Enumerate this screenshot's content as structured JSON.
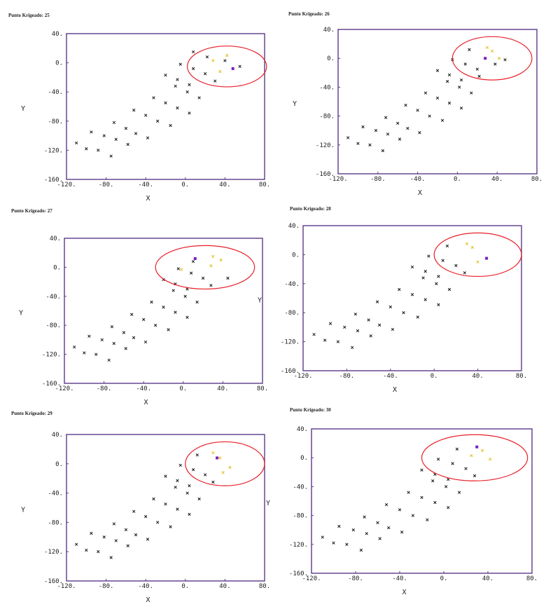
{
  "colors": {
    "frame": "#5a3a8a",
    "point": "#1a1a1a",
    "highlight": "#e0c020",
    "target": "#7a1fbf",
    "ellipse": "#e8202a"
  },
  "chart_data": [
    {
      "type": "scatter",
      "title": "Punto Krigeado: 25",
      "xlabel": "X",
      "ylabel": "Y",
      "xlim": [
        -120,
        80
      ],
      "ylim": [
        -160,
        40
      ],
      "xticks": [
        "-120.",
        "-80.",
        "-40.",
        "0.",
        "40.",
        "80."
      ],
      "yticks": [
        "40.",
        "0.",
        "-40.",
        "-80.",
        "-120.",
        "-160."
      ],
      "marker": "x",
      "points": [
        [
          -110,
          -110
        ],
        [
          -100,
          -118
        ],
        [
          -88,
          -120
        ],
        [
          -75,
          -128
        ],
        [
          -95,
          -95
        ],
        [
          -82,
          -100
        ],
        [
          -70,
          -105
        ],
        [
          -58,
          -112
        ],
        [
          -72,
          -82
        ],
        [
          -60,
          -90
        ],
        [
          -50,
          -97
        ],
        [
          -38,
          -103
        ],
        [
          -52,
          -65
        ],
        [
          -40,
          -72
        ],
        [
          -28,
          -80
        ],
        [
          -15,
          -86
        ],
        [
          -32,
          -48
        ],
        [
          -20,
          -55
        ],
        [
          -8,
          -62
        ],
        [
          4,
          -69
        ],
        [
          -10,
          -32
        ],
        [
          2,
          -40
        ],
        [
          14,
          -48
        ],
        [
          -20,
          -17
        ],
        [
          -8,
          -23
        ],
        [
          4,
          -30
        ],
        [
          -5,
          -2
        ],
        [
          8,
          -8
        ],
        [
          20,
          -15
        ],
        [
          8,
          15
        ],
        [
          22,
          8
        ],
        [
          30,
          -25
        ],
        [
          40,
          3
        ],
        [
          55,
          -5
        ]
      ],
      "highlight_points": [
        [
          28,
          3
        ],
        [
          35,
          -12
        ],
        [
          42,
          10
        ]
      ],
      "target": [
        48,
        -8
      ],
      "ellipse": {
        "cx": 42,
        "cy": -5,
        "rx": 40,
        "ry": 28
      }
    },
    {
      "type": "scatter",
      "title": "Punto Krigeado: 26",
      "xlabel": "X",
      "ylabel": "Y",
      "xlim": [
        -120,
        80
      ],
      "ylim": [
        -160,
        40
      ],
      "xticks": [
        "-120.",
        "-80.",
        "-40.",
        "0.",
        "40.",
        "80."
      ],
      "yticks": [
        "40.",
        "0.",
        "-40.",
        "-80.",
        "-120.",
        "-160."
      ],
      "marker": "x",
      "points": [
        [
          -110,
          -110
        ],
        [
          -100,
          -118
        ],
        [
          -88,
          -120
        ],
        [
          -75,
          -128
        ],
        [
          -95,
          -95
        ],
        [
          -82,
          -100
        ],
        [
          -70,
          -105
        ],
        [
          -58,
          -112
        ],
        [
          -72,
          -82
        ],
        [
          -60,
          -90
        ],
        [
          -50,
          -97
        ],
        [
          -38,
          -103
        ],
        [
          -52,
          -65
        ],
        [
          -40,
          -72
        ],
        [
          -28,
          -80
        ],
        [
          -15,
          -86
        ],
        [
          -32,
          -48
        ],
        [
          -20,
          -55
        ],
        [
          -8,
          -62
        ],
        [
          4,
          -69
        ],
        [
          -10,
          -32
        ],
        [
          2,
          -40
        ],
        [
          14,
          -48
        ],
        [
          -20,
          -17
        ],
        [
          -8,
          -23
        ],
        [
          4,
          -30
        ],
        [
          -5,
          -2
        ],
        [
          8,
          -8
        ],
        [
          20,
          -15
        ],
        [
          12,
          12
        ],
        [
          22,
          -25
        ],
        [
          38,
          -8
        ],
        [
          48,
          -2
        ]
      ],
      "highlight_points": [
        [
          30,
          15
        ],
        [
          35,
          10
        ],
        [
          42,
          0
        ]
      ],
      "target": [
        28,
        0
      ],
      "ellipse": {
        "cx": 35,
        "cy": 0,
        "rx": 40,
        "ry": 30
      }
    },
    {
      "type": "scatter",
      "title": "Punto Krigeado: 27",
      "xlabel": "X",
      "ylabel": "Y",
      "xlim": [
        -120,
        80
      ],
      "ylim": [
        -160,
        40
      ],
      "xticks": [
        "-120.",
        "-80.",
        "-40.",
        "0.",
        "40.",
        "80."
      ],
      "yticks": [
        "40.",
        "0.",
        "-40.",
        "-80.",
        "-120.",
        "-160."
      ],
      "marker": "x",
      "points": [
        [
          -110,
          -110
        ],
        [
          -100,
          -118
        ],
        [
          -88,
          -120
        ],
        [
          -75,
          -128
        ],
        [
          -95,
          -95
        ],
        [
          -82,
          -100
        ],
        [
          -70,
          -105
        ],
        [
          -58,
          -112
        ],
        [
          -72,
          -82
        ],
        [
          -60,
          -90
        ],
        [
          -50,
          -97
        ],
        [
          -38,
          -103
        ],
        [
          -52,
          -65
        ],
        [
          -40,
          -72
        ],
        [
          -28,
          -80
        ],
        [
          -15,
          -86
        ],
        [
          -32,
          -48
        ],
        [
          -20,
          -55
        ],
        [
          -8,
          -62
        ],
        [
          4,
          -69
        ],
        [
          -10,
          -32
        ],
        [
          2,
          -40
        ],
        [
          14,
          -48
        ],
        [
          -20,
          -17
        ],
        [
          -8,
          -23
        ],
        [
          4,
          -30
        ],
        [
          -5,
          -2
        ],
        [
          8,
          -8
        ],
        [
          20,
          -15
        ],
        [
          10,
          8
        ],
        [
          28,
          -25
        ],
        [
          45,
          -15
        ]
      ],
      "highlight_points": [
        [
          -2,
          -3
        ],
        [
          28,
          2
        ],
        [
          30,
          15
        ],
        [
          38,
          10
        ]
      ],
      "target": [
        12,
        12
      ],
      "ellipse": {
        "cx": 22,
        "cy": 0,
        "rx": 50,
        "ry": 30
      }
    },
    {
      "type": "scatter",
      "title": "Punto Krigeado: 28",
      "xlabel": "X",
      "ylabel": "Y",
      "xlim": [
        -120,
        80
      ],
      "ylim": [
        -160,
        40
      ],
      "xticks": [
        "-120.",
        "-80.",
        "-40.",
        "0.",
        "40.",
        "80."
      ],
      "yticks": [
        "40.",
        "0.",
        "-40.",
        "-80.",
        "-120.",
        "-160."
      ],
      "marker": "x",
      "points": [
        [
          -110,
          -110
        ],
        [
          -100,
          -118
        ],
        [
          -88,
          -120
        ],
        [
          -75,
          -128
        ],
        [
          -95,
          -95
        ],
        [
          -82,
          -100
        ],
        [
          -70,
          -105
        ],
        [
          -58,
          -112
        ],
        [
          -72,
          -82
        ],
        [
          -60,
          -90
        ],
        [
          -50,
          -97
        ],
        [
          -38,
          -103
        ],
        [
          -52,
          -65
        ],
        [
          -40,
          -72
        ],
        [
          -28,
          -80
        ],
        [
          -15,
          -86
        ],
        [
          -32,
          -48
        ],
        [
          -20,
          -55
        ],
        [
          -8,
          -62
        ],
        [
          4,
          -69
        ],
        [
          -10,
          -32
        ],
        [
          2,
          -40
        ],
        [
          14,
          -48
        ],
        [
          -20,
          -17
        ],
        [
          -8,
          -23
        ],
        [
          4,
          -30
        ],
        [
          -5,
          -2
        ],
        [
          8,
          -8
        ],
        [
          20,
          -15
        ],
        [
          12,
          12
        ],
        [
          28,
          -25
        ]
      ],
      "highlight_points": [
        [
          30,
          15
        ],
        [
          35,
          10
        ],
        [
          40,
          -10
        ]
      ],
      "target": [
        48,
        -5
      ],
      "ellipse": {
        "cx": 40,
        "cy": 0,
        "rx": 40,
        "ry": 30
      }
    },
    {
      "type": "scatter",
      "title": "Punto Krigeado: 29",
      "xlabel": "X",
      "ylabel": "Y",
      "xlim": [
        -120,
        80
      ],
      "ylim": [
        -160,
        40
      ],
      "xticks": [
        "-120.",
        "-80.",
        "-40.",
        "0.",
        "40.",
        "80."
      ],
      "yticks": [
        "40.",
        "0.",
        "-40.",
        "-80.",
        "-120.",
        "-160."
      ],
      "marker": "x",
      "points": [
        [
          -110,
          -110
        ],
        [
          -100,
          -118
        ],
        [
          -88,
          -120
        ],
        [
          -75,
          -128
        ],
        [
          -95,
          -95
        ],
        [
          -82,
          -100
        ],
        [
          -70,
          -105
        ],
        [
          -58,
          -112
        ],
        [
          -72,
          -82
        ],
        [
          -60,
          -90
        ],
        [
          -50,
          -97
        ],
        [
          -38,
          -103
        ],
        [
          -52,
          -65
        ],
        [
          -40,
          -72
        ],
        [
          -28,
          -80
        ],
        [
          -15,
          -86
        ],
        [
          -32,
          -48
        ],
        [
          -20,
          -55
        ],
        [
          -8,
          -62
        ],
        [
          4,
          -69
        ],
        [
          -10,
          -32
        ],
        [
          2,
          -40
        ],
        [
          14,
          -48
        ],
        [
          -20,
          -17
        ],
        [
          -8,
          -23
        ],
        [
          4,
          -30
        ],
        [
          -5,
          -2
        ],
        [
          8,
          -8
        ],
        [
          20,
          -15
        ],
        [
          12,
          12
        ],
        [
          28,
          -25
        ]
      ],
      "highlight_points": [
        [
          28,
          15
        ],
        [
          35,
          8
        ],
        [
          38,
          -12
        ],
        [
          45,
          -5
        ]
      ],
      "target": [
        32,
        8
      ],
      "ellipse": {
        "cx": 40,
        "cy": 0,
        "rx": 40,
        "ry": 30
      }
    },
    {
      "type": "scatter",
      "title": "Punto Krigeado: 30",
      "xlabel": "X",
      "ylabel": "Y",
      "xlim": [
        -120,
        80
      ],
      "ylim": [
        -160,
        40
      ],
      "xticks": [
        "-120.",
        "-80.",
        "-40.",
        "0.",
        "40.",
        "80."
      ],
      "yticks": [
        "40.",
        "0.",
        "-40.",
        "-80.",
        "-120.",
        "-160."
      ],
      "marker": "x",
      "points": [
        [
          -110,
          -110
        ],
        [
          -100,
          -118
        ],
        [
          -88,
          -120
        ],
        [
          -75,
          -128
        ],
        [
          -95,
          -95
        ],
        [
          -82,
          -100
        ],
        [
          -70,
          -105
        ],
        [
          -58,
          -112
        ],
        [
          -72,
          -82
        ],
        [
          -60,
          -90
        ],
        [
          -50,
          -97
        ],
        [
          -38,
          -103
        ],
        [
          -52,
          -65
        ],
        [
          -40,
          -72
        ],
        [
          -28,
          -80
        ],
        [
          -15,
          -86
        ],
        [
          -32,
          -48
        ],
        [
          -20,
          -55
        ],
        [
          -8,
          -62
        ],
        [
          4,
          -69
        ],
        [
          -10,
          -32
        ],
        [
          2,
          -40
        ],
        [
          14,
          -48
        ],
        [
          -20,
          -17
        ],
        [
          -8,
          -23
        ],
        [
          4,
          -30
        ],
        [
          -5,
          -2
        ],
        [
          8,
          -8
        ],
        [
          20,
          -15
        ],
        [
          12,
          12
        ],
        [
          28,
          -25
        ]
      ],
      "highlight_points": [
        [
          25,
          3
        ],
        [
          35,
          10
        ],
        [
          42,
          -2
        ]
      ],
      "target": [
        30,
        15
      ],
      "ellipse": {
        "cx": 28,
        "cy": 0,
        "rx": 48,
        "ry": 32
      }
    }
  ]
}
